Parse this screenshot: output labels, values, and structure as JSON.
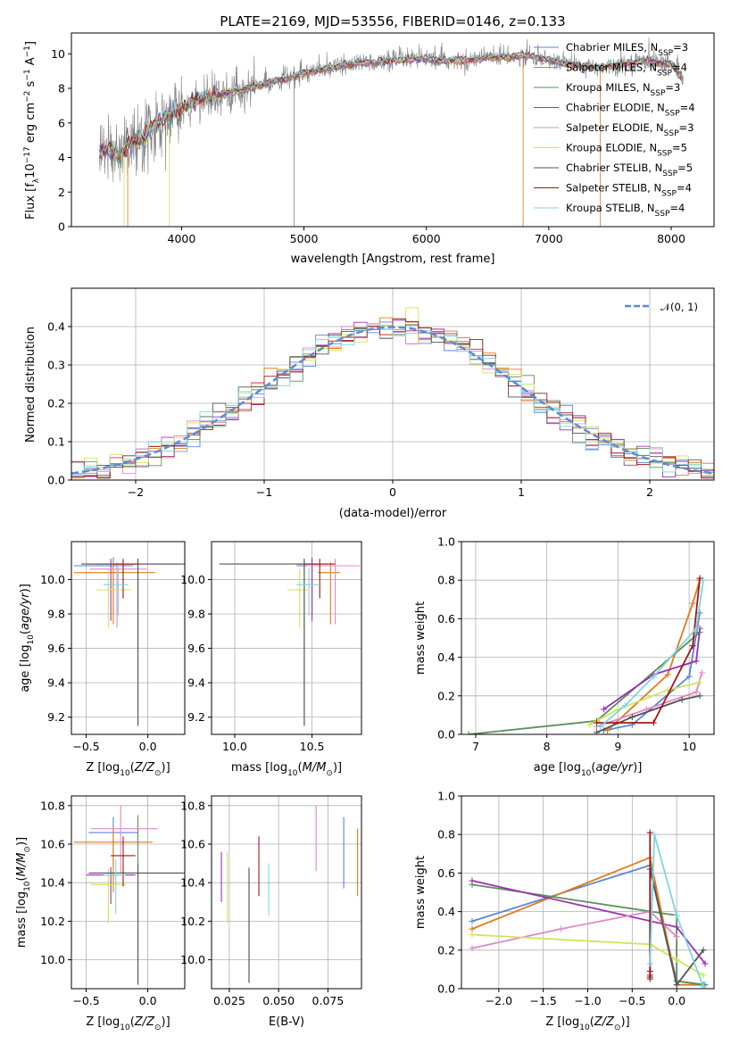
{
  "colors": [
    "#5b85d6",
    "#e07b1a",
    "#5a8f5a",
    "#9b30b0",
    "#e088c8",
    "#cde65a",
    "#555555",
    "#a01818",
    "#7fd6dc"
  ],
  "chart_data": [
    {
      "id": "spectrum",
      "type": "line",
      "title": "PLATE=2169, MJD=53556, FIBERID=0146, z=0.133",
      "xlabel": "wavelength [Angstrom, rest frame]",
      "ylabel": "Flux [f",
      "ylabel_parts": [
        "Flux [f",
        "λ",
        "10",
        "−17",
        " erg cm",
        "−2",
        " s",
        "−1",
        " A",
        "−1",
        "]"
      ],
      "xlim": [
        3100,
        8350
      ],
      "ylim": [
        0,
        11.2
      ],
      "xticks": [
        4000,
        5000,
        6000,
        7000,
        8000
      ],
      "yticks": [
        0,
        2,
        4,
        6,
        8,
        10
      ],
      "grid": false,
      "legend_position": "right",
      "legend": [
        {
          "name": "Chabrier MILES, N",
          "sub": "SSP",
          "suffix": "=3"
        },
        {
          "name": "Salpeter MILES, N",
          "sub": "SSP",
          "suffix": "=4"
        },
        {
          "name": "Kroupa MILES, N",
          "sub": "SSP",
          "suffix": "=3"
        },
        {
          "name": "Chabrier ELODIE, N",
          "sub": "SSP",
          "suffix": "=4"
        },
        {
          "name": "Salpeter ELODIE, N",
          "sub": "SSP",
          "suffix": "=3"
        },
        {
          "name": "Kroupa ELODIE, N",
          "sub": "SSP",
          "suffix": "=5"
        },
        {
          "name": "Chabrier STELIB, N",
          "sub": "SSP",
          "suffix": "=5"
        },
        {
          "name": "Salpeter STELIB, N",
          "sub": "SSP",
          "suffix": "=4"
        },
        {
          "name": "Kroupa STELIB, N",
          "sub": "SSP",
          "suffix": "=4"
        }
      ],
      "observed_series": {
        "name": "data",
        "x": [
          3330,
          3400,
          3500,
          3600,
          3700,
          3800,
          3900,
          4000,
          4100,
          4200,
          4300,
          4400,
          4500,
          4600,
          4700,
          4800,
          4900,
          5000,
          5100,
          5200,
          5300,
          5400,
          5500,
          5600,
          5700,
          5800,
          5900,
          6000,
          6100,
          6200,
          6300,
          6400,
          6500,
          6600,
          6700,
          6800,
          6900,
          7000,
          7100,
          7200,
          7300,
          7400,
          7500,
          7600,
          7700,
          7800,
          7900,
          8000,
          8100
        ],
        "y": [
          4.3,
          4.4,
          4.2,
          4.9,
          5.2,
          6.0,
          6.5,
          6.8,
          7.2,
          7.5,
          7.6,
          7.8,
          7.9,
          8.1,
          8.3,
          8.5,
          8.6,
          8.9,
          9.0,
          9.2,
          9.3,
          9.4,
          9.5,
          9.5,
          9.6,
          9.6,
          9.7,
          9.7,
          9.6,
          9.6,
          9.6,
          9.7,
          9.8,
          9.8,
          9.8,
          9.9,
          9.8,
          9.6,
          9.5,
          9.4,
          9.3,
          9.2,
          9.3,
          9.4,
          9.5,
          9.6,
          9.5,
          9.4,
          8.5
        ]
      }
    },
    {
      "id": "residuals",
      "type": "histogram",
      "xlabel": "(data-model)/error",
      "ylabel": "Normed distribution",
      "xlim": [
        -2.5,
        2.5
      ],
      "ylim": [
        0,
        0.5
      ],
      "xticks": [
        -2,
        -1,
        0,
        1,
        2
      ],
      "xtick_labels": [
        "−2",
        "−1",
        "0",
        "1",
        "2"
      ],
      "yticks": [
        0.0,
        0.1,
        0.2,
        0.3,
        0.4
      ],
      "ytick_labels": [
        "0.0",
        "0.1",
        "0.2",
        "0.3",
        "0.4"
      ],
      "grid": true,
      "legend_position": "top-right",
      "reference_label": "𝒩(0, 1)",
      "reference_color": "#5b8bd6",
      "bin_width": 0.1
    },
    {
      "id": "age-vs-Z",
      "type": "errorbar",
      "xlabel": "Z [log",
      "xlabel_text": [
        "Z [log",
        "10",
        "(Z/Z",
        "⊙",
        ")]"
      ],
      "ylabel": "age  [log",
      "ylabel_text": [
        "age  [log",
        "10",
        "(age/yr)]"
      ],
      "xlim": [
        -0.62,
        0.3
      ],
      "ylim": [
        9.1,
        10.22
      ],
      "xticks": [
        -0.5,
        0.0
      ],
      "xtick_labels": [
        "−0.5",
        "0.0"
      ],
      "yticks": [
        9.2,
        9.4,
        9.6,
        9.8,
        10.0
      ],
      "ytick_labels": [
        "9.2",
        "9.4",
        "9.6",
        "9.8",
        "10.0"
      ],
      "grid": true,
      "points": [
        {
          "x": -0.28,
          "y": 10.08,
          "xerr": [
            0.32,
            0.16
          ],
          "yerr": [
            0.28,
            0.05
          ]
        },
        {
          "x": -0.28,
          "y": 10.04,
          "xerr": [
            0.32,
            0.34
          ],
          "yerr": [
            0.3,
            0.06
          ]
        },
        {
          "x": -0.08,
          "y": 10.09,
          "xerr": [
            0.36,
            0.36
          ],
          "yerr": [
            0.94,
            0.03
          ]
        },
        {
          "x": -0.3,
          "y": 10.09,
          "xerr": [
            0.2,
            0.2
          ],
          "yerr": [
            0.33,
            0.03
          ]
        },
        {
          "x": -0.25,
          "y": 10.06,
          "xerr": [
            0.22,
            0.24
          ],
          "yerr": [
            0.34,
            0.04
          ]
        },
        {
          "x": -0.32,
          "y": 9.94,
          "xerr": [
            0.1,
            0.18
          ],
          "yerr": [
            0.22,
            0.12
          ]
        },
        {
          "x": -0.08,
          "y": 10.09,
          "xerr": [
            0.46,
            0.38
          ],
          "yerr": [
            0.94,
            0.03
          ]
        },
        {
          "x": -0.2,
          "y": 10.09,
          "xerr": [
            0.08,
            0.12
          ],
          "yerr": [
            0.2,
            0.03
          ]
        },
        {
          "x": -0.24,
          "y": 9.97,
          "xerr": [
            0.12,
            0.08
          ],
          "yerr": [
            0.18,
            0.1
          ]
        }
      ]
    },
    {
      "id": "age-vs-mass",
      "type": "errorbar",
      "xlabel": "mass [log",
      "xlabel_text": [
        "mass [log",
        "10",
        "(M/M",
        "⊙",
        ")]"
      ],
      "xlim": [
        9.85,
        10.82
      ],
      "ylim": [
        9.1,
        10.22
      ],
      "xticks": [
        10.0,
        10.5
      ],
      "xtick_labels": [
        "10.0",
        "10.5"
      ],
      "yticks": [
        9.2,
        9.4,
        9.6,
        9.8,
        10.0
      ],
      "ytick_labels": [
        "9.2",
        "9.4",
        "9.6",
        "9.8",
        "10.0"
      ],
      "grid": true,
      "points": [
        {
          "x": 10.5,
          "y": 10.08,
          "xerr": [
            0.1,
            0.1
          ],
          "yerr": [
            0.28,
            0.05
          ]
        },
        {
          "x": 10.62,
          "y": 10.04,
          "xerr": [
            0.08,
            0.06
          ],
          "yerr": [
            0.3,
            0.06
          ]
        },
        {
          "x": 10.45,
          "y": 10.09,
          "xerr": [
            0.05,
            0.1
          ],
          "yerr": [
            0.94,
            0.03
          ]
        },
        {
          "x": 10.5,
          "y": 10.09,
          "xerr": [
            0.1,
            0.1
          ],
          "yerr": [
            0.33,
            0.03
          ]
        },
        {
          "x": 10.65,
          "y": 10.08,
          "xerr": [
            0.18,
            0.16
          ],
          "yerr": [
            0.34,
            0.04
          ]
        },
        {
          "x": 10.42,
          "y": 9.94,
          "xerr": [
            0.08,
            0.06
          ],
          "yerr": [
            0.22,
            0.12
          ]
        },
        {
          "x": 10.45,
          "y": 10.09,
          "xerr": [
            0.55,
            0.1
          ],
          "yerr": [
            0.94,
            0.03
          ]
        },
        {
          "x": 10.55,
          "y": 10.09,
          "xerr": [
            0.1,
            0.1
          ],
          "yerr": [
            0.2,
            0.03
          ]
        },
        {
          "x": 10.48,
          "y": 9.97,
          "xerr": [
            0.08,
            0.06
          ],
          "yerr": [
            0.18,
            0.1
          ]
        }
      ]
    },
    {
      "id": "massweight-vs-age",
      "type": "line",
      "xlabel": "age  [log",
      "xlabel_text": [
        "age  [log",
        "10",
        "(age/yr)]"
      ],
      "ylabel": "mass weight",
      "xlim": [
        6.8,
        10.35
      ],
      "ylim": [
        0,
        1.0
      ],
      "xticks": [
        7,
        8,
        9,
        10
      ],
      "xtick_labels": [
        "7",
        "8",
        "9",
        "10"
      ],
      "yticks": [
        0,
        0.2,
        0.4,
        0.6,
        0.8,
        1.0
      ],
      "ytick_labels": [
        "0.0",
        "0.2",
        "0.4",
        "0.6",
        "0.8",
        "1.0"
      ],
      "grid": true,
      "series": [
        {
          "x": [
            8.8,
            9.2,
            10.0,
            10.15
          ],
          "y": [
            0.02,
            0.05,
            0.3,
            0.63
          ]
        },
        {
          "x": [
            8.85,
            9.7,
            10.05,
            10.15
          ],
          "y": [
            0.02,
            0.31,
            0.68,
            0.8
          ]
        },
        {
          "x": [
            6.9,
            8.7,
            10.15
          ],
          "y": [
            0.0,
            0.07,
            0.53
          ]
        },
        {
          "x": [
            8.8,
            9.5,
            10.1,
            10.15
          ],
          "y": [
            0.13,
            0.31,
            0.38,
            0.55
          ]
        },
        {
          "x": [
            8.7,
            9.4,
            10.1,
            10.18
          ],
          "y": [
            0.04,
            0.13,
            0.22,
            0.32
          ]
        },
        {
          "x": [
            8.6,
            9.0,
            9.7,
            10.15
          ],
          "y": [
            0.05,
            0.13,
            0.23,
            0.27
          ]
        },
        {
          "x": [
            8.7,
            9.2,
            9.9,
            10.15
          ],
          "y": [
            0.01,
            0.09,
            0.18,
            0.2
          ]
        },
        {
          "x": [
            8.7,
            9.5,
            10.05,
            10.15
          ],
          "y": [
            0.06,
            0.06,
            0.46,
            0.81
          ]
        },
        {
          "x": [
            8.75,
            9.1,
            9.5,
            10.1,
            10.2
          ],
          "y": [
            0.04,
            0.15,
            0.3,
            0.55,
            0.8
          ]
        }
      ]
    },
    {
      "id": "mass-vs-Z",
      "type": "errorbar",
      "xlabel": "Z [log",
      "xlabel_text": [
        "Z [log",
        "10",
        "(Z/Z",
        "⊙",
        ")]"
      ],
      "ylabel": "mass [log",
      "ylabel_text": [
        "mass [log",
        "10",
        "(M/M",
        "⊙",
        ")]"
      ],
      "xlim": [
        -0.62,
        0.3
      ],
      "ylim": [
        9.85,
        10.85
      ],
      "xticks": [
        -0.5,
        0.0
      ],
      "xtick_labels": [
        "−0.5",
        "0.0"
      ],
      "yticks": [
        10.0,
        10.2,
        10.4,
        10.6,
        10.8
      ],
      "ytick_labels": [
        "10.0",
        "10.2",
        "10.4",
        "10.6",
        "10.8"
      ],
      "grid": true,
      "points": [
        {
          "x": -0.28,
          "y": 10.66,
          "xerr": [
            0.2,
            0.2
          ],
          "yerr": [
            0.18,
            0.08
          ]
        },
        {
          "x": -0.28,
          "y": 10.61,
          "xerr": [
            0.32,
            0.32
          ],
          "yerr": [
            0.26,
            0.08
          ]
        },
        {
          "x": -0.08,
          "y": 10.45,
          "xerr": [
            0.38,
            0.36
          ],
          "yerr": [
            0.58,
            0.3
          ]
        },
        {
          "x": -0.3,
          "y": 10.44,
          "xerr": [
            0.2,
            0.2
          ],
          "yerr": [
            0.15,
            0.04
          ]
        },
        {
          "x": -0.22,
          "y": 10.68,
          "xerr": [
            0.24,
            0.3
          ],
          "yerr": [
            0.23,
            0.12
          ]
        },
        {
          "x": -0.32,
          "y": 10.39,
          "xerr": [
            0.14,
            0.14
          ],
          "yerr": [
            0.2,
            0.08
          ]
        },
        {
          "x": -0.08,
          "y": 10.45,
          "xerr": [
            0.4,
            0.38
          ],
          "yerr": [
            0.58,
            0.05
          ]
        },
        {
          "x": -0.2,
          "y": 10.54,
          "xerr": [
            0.1,
            0.1
          ],
          "yerr": [
            0.16,
            0.1
          ]
        },
        {
          "x": -0.26,
          "y": 10.44,
          "xerr": [
            0.1,
            0.08
          ],
          "yerr": [
            0.2,
            0.08
          ]
        }
      ]
    },
    {
      "id": "mass-vs-EBV",
      "type": "errorbar",
      "xlabel": "E(B-V)",
      "xlim": [
        0.016,
        0.092
      ],
      "ylim": [
        9.85,
        10.85
      ],
      "xticks": [
        0.025,
        0.05,
        0.075
      ],
      "xtick_labels": [
        "0.025",
        "0.050",
        "0.075"
      ],
      "yticks": [
        10.0,
        10.2,
        10.4,
        10.6,
        10.8
      ],
      "ytick_labels": [
        "10.0",
        "10.2",
        "10.4",
        "10.6",
        "10.8"
      ],
      "grid": true,
      "points": [
        {
          "x": 0.083,
          "y": 10.55,
          "yerr": [
            0.18,
            0.19
          ]
        },
        {
          "x": 0.09,
          "y": 10.5,
          "yerr": [
            0.17,
            0.18
          ]
        },
        {
          "x": 0.035,
          "y": 10.28,
          "yerr": [
            0.4,
            0.2
          ]
        },
        {
          "x": 0.021,
          "y": 10.43,
          "yerr": [
            0.13,
            0.13
          ]
        },
        {
          "x": 0.069,
          "y": 10.62,
          "yerr": [
            0.16,
            0.18
          ]
        },
        {
          "x": 0.024,
          "y": 10.38,
          "yerr": [
            0.19,
            0.18
          ]
        },
        {
          "x": 0.035,
          "y": 10.25,
          "yerr": [
            0.37,
            0.22
          ]
        },
        {
          "x": 0.04,
          "y": 10.48,
          "yerr": [
            0.15,
            0.16
          ]
        },
        {
          "x": 0.045,
          "y": 10.37,
          "yerr": [
            0.14,
            0.13
          ]
        }
      ]
    },
    {
      "id": "massweight-vs-Z",
      "type": "line",
      "xlabel": "Z [log",
      "xlabel_text": [
        "Z [log",
        "10",
        "(Z/Z",
        "⊙",
        ")]"
      ],
      "ylabel": "mass weight",
      "xlim": [
        -2.42,
        0.42
      ],
      "ylim": [
        0,
        1.0
      ],
      "xticks": [
        -2.0,
        -1.5,
        -1.0,
        -0.5,
        0.0
      ],
      "xtick_labels": [
        "−2.0",
        "−1.5",
        "−1.0",
        "−0.5",
        "0.0"
      ],
      "yticks": [
        0,
        0.2,
        0.4,
        0.6,
        0.8,
        1.0
      ],
      "ytick_labels": [
        "0.0",
        "0.2",
        "0.4",
        "0.6",
        "0.8",
        "1.0"
      ],
      "grid": true,
      "series": [
        {
          "x": [
            -2.3,
            -0.3,
            0.0,
            0.32
          ],
          "y": [
            0.35,
            0.64,
            0.04,
            0.02
          ]
        },
        {
          "x": [
            -2.3,
            -0.3,
            0.0,
            0.3
          ],
          "y": [
            0.31,
            0.68,
            0.02,
            0.02
          ]
        },
        {
          "x": [
            -2.3,
            0.0,
            0.0,
            0.3
          ],
          "y": [
            0.54,
            0.38,
            0.04,
            0.02
          ]
        },
        {
          "x": [
            -2.3,
            0.0,
            0.32
          ],
          "y": [
            0.56,
            0.32,
            0.13
          ]
        },
        {
          "x": [
            -2.3,
            -1.3,
            -0.3,
            0.0
          ],
          "y": [
            0.21,
            0.31,
            0.4,
            0.27
          ]
        },
        {
          "x": [
            -2.3,
            -0.3,
            0.0,
            0.3
          ],
          "y": [
            0.28,
            0.23,
            0.15,
            0.07
          ]
        },
        {
          "x": [
            -0.3,
            -0.3,
            0.0,
            0.3
          ],
          "y": [
            0.05,
            0.62,
            0.02,
            0.2
          ]
        },
        {
          "x": [
            -0.3,
            -0.3,
            -0.3,
            -0.3
          ],
          "y": [
            0.09,
            0.06,
            0.07,
            0.81
          ]
        },
        {
          "x": [
            -0.3,
            -0.25,
            0.0,
            0.3
          ],
          "y": [
            0.13,
            0.8,
            0.38,
            0.01
          ]
        }
      ]
    }
  ]
}
